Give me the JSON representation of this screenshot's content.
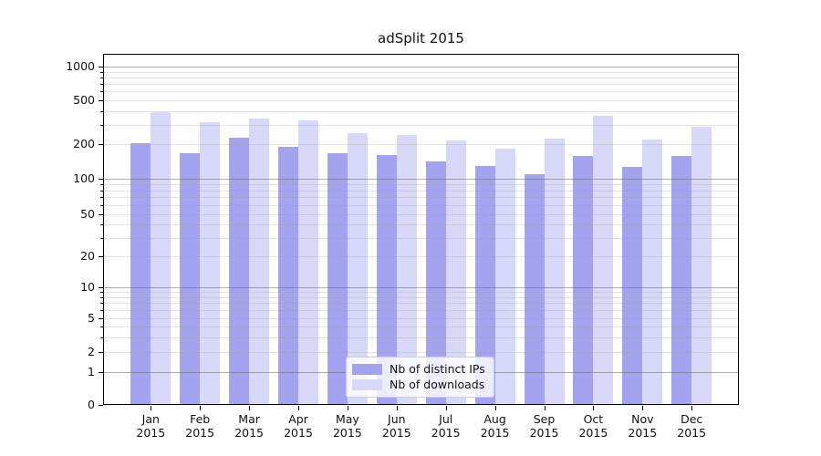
{
  "figure": {
    "title": "adSplit 2015",
    "background": "#ffffff"
  },
  "chart_data": {
    "type": "bar",
    "title": "adSplit 2015",
    "categories": [
      "Jan 2015",
      "Feb 2015",
      "Mar 2015",
      "Apr 2015",
      "May 2015",
      "Jun 2015",
      "Jul 2015",
      "Aug 2015",
      "Sep 2015",
      "Oct 2015",
      "Nov 2015",
      "Dec 2015"
    ],
    "x_tick_months": [
      "Jan",
      "Feb",
      "Mar",
      "Apr",
      "May",
      "Jun",
      "Jul",
      "Aug",
      "Sep",
      "Oct",
      "Nov",
      "Dec"
    ],
    "x_tick_year": "2015",
    "series": [
      {
        "name": "Nb of distinct IPs",
        "color": "#a3a3f0",
        "values": [
          204,
          166,
          227,
          189,
          166,
          160,
          141,
          130,
          110,
          158,
          127,
          157
        ]
      },
      {
        "name": "Nb of downloads",
        "color": "#d8d8f8",
        "values": [
          390,
          314,
          341,
          327,
          250,
          241,
          217,
          184,
          225,
          359,
          219,
          286
        ]
      }
    ],
    "yscale": "symlog",
    "ylabel": "",
    "xlabel": "",
    "ylim": [
      0,
      1400
    ],
    "y_ticks": [
      0,
      1,
      2,
      5,
      10,
      20,
      50,
      100,
      200,
      500,
      1000
    ],
    "grid_major_values": [
      1,
      10,
      100,
      1000
    ],
    "grid_minor_multiples": [
      2,
      3,
      4,
      5,
      6,
      7,
      8,
      9
    ],
    "grid": "on",
    "legend_position": "lower center"
  }
}
